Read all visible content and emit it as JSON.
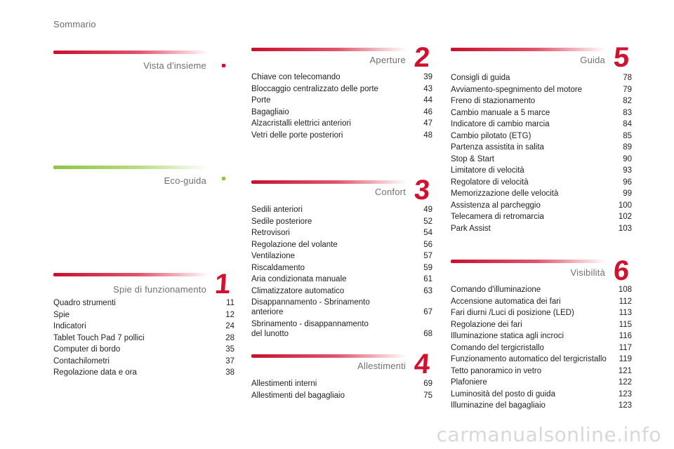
{
  "page_title": "Sommario",
  "sections": {
    "vista": {
      "title": "Vista d'insieme"
    },
    "eco": {
      "title": "Eco-guida"
    },
    "spie": {
      "title": "Spie di funzionamento",
      "number": "1",
      "items": [
        {
          "label": "Quadro strumenti",
          "page": "11"
        },
        {
          "label": "Spie",
          "page": "12"
        },
        {
          "label": "Indicatori",
          "page": "24"
        },
        {
          "label": "Tablet Touch Pad 7 pollici",
          "page": "28"
        },
        {
          "label": "Computer di bordo",
          "page": "35"
        },
        {
          "label": "Contachilometri",
          "page": "37"
        },
        {
          "label": "Regolazione data e ora",
          "page": "38"
        }
      ]
    },
    "aperture": {
      "title": "Aperture",
      "number": "2",
      "items": [
        {
          "label": "Chiave con telecomando",
          "page": "39"
        },
        {
          "label": "Bloccaggio centralizzato delle porte",
          "page": "43"
        },
        {
          "label": "Porte",
          "page": "44"
        },
        {
          "label": "Bagagliaio",
          "page": "46"
        },
        {
          "label": "Alzacristalli elettrici anteriori",
          "page": "47"
        },
        {
          "label": "Vetri delle porte posteriori",
          "page": "48"
        }
      ]
    },
    "confort": {
      "title": "Confort",
      "number": "3",
      "items": [
        {
          "label": "Sedili anteriori",
          "page": "49"
        },
        {
          "label": "Sedile posteriore",
          "page": "52"
        },
        {
          "label": "Retrovisori",
          "page": "54"
        },
        {
          "label": "Regolazione del volante",
          "page": "56"
        },
        {
          "label": "Ventilazione",
          "page": "57"
        },
        {
          "label": "Riscaldamento",
          "page": "59"
        },
        {
          "label": "Aria condizionata manuale",
          "page": "61"
        },
        {
          "label": "Climatizzatore automatico",
          "page": "63"
        },
        {
          "label": "Disappannamento - Sbrinamento\nanteriore",
          "page": "67"
        },
        {
          "label": "Sbrinamento - disappannamento\ndel lunotto",
          "page": "68"
        }
      ]
    },
    "allestimenti": {
      "title": "Allestimenti",
      "number": "4",
      "items": [
        {
          "label": "Allestimenti interni",
          "page": "69"
        },
        {
          "label": "Allestimenti del bagagliaio",
          "page": "75"
        }
      ]
    },
    "guida": {
      "title": "Guida",
      "number": "5",
      "items": [
        {
          "label": "Consigli di guida",
          "page": "78"
        },
        {
          "label": "Avviamento-spegnimento del motore",
          "page": "79"
        },
        {
          "label": "Freno di stazionamento",
          "page": "82"
        },
        {
          "label": "Cambio manuale a 5 marce",
          "page": "83"
        },
        {
          "label": "Indicatore di cambio marcia",
          "page": "84"
        },
        {
          "label": "Cambio pilotato (ETG)",
          "page": "85"
        },
        {
          "label": "Partenza assistita in salita",
          "page": "89"
        },
        {
          "label": "Stop & Start",
          "page": "90"
        },
        {
          "label": "Limitatore di velocità",
          "page": "93"
        },
        {
          "label": "Regolatore di velocità",
          "page": "96"
        },
        {
          "label": "Memorizzazione delle velocità",
          "page": "99"
        },
        {
          "label": "Assistenza al parcheggio",
          "page": "100"
        },
        {
          "label": "Telecamera di retromarcia",
          "page": "102"
        },
        {
          "label": "Park Assist",
          "page": "103"
        }
      ]
    },
    "visibilita": {
      "title": "Visibilità",
      "number": "6",
      "items": [
        {
          "label": "Comando d'illuminazione",
          "page": "108"
        },
        {
          "label": "Accensione automatica dei fari",
          "page": "112"
        },
        {
          "label": "Fari diurni /Luci di posizione (LED)",
          "page": "113"
        },
        {
          "label": "Regolazione dei fari",
          "page": "115"
        },
        {
          "label": "Illuminazione statica agli incroci",
          "page": "116"
        },
        {
          "label": "Comando del tergicristallo",
          "page": "117"
        },
        {
          "label": "Funzionamento automatico del tergicristallo",
          "page": "119"
        },
        {
          "label": "Tetto panoramico in vetro",
          "page": "121"
        },
        {
          "label": "Plafoniere",
          "page": "122"
        },
        {
          "label": "Luminosità del posto di guida",
          "page": "123"
        },
        {
          "label": "Illuminazine del bagagliaio",
          "page": "123"
        }
      ]
    }
  },
  "watermark": "carmanualsonline.info",
  "colors": {
    "accent_red": "#d2112e",
    "accent_green": "#8cc63f",
    "text": "#222222",
    "title_grey": "#707070"
  }
}
